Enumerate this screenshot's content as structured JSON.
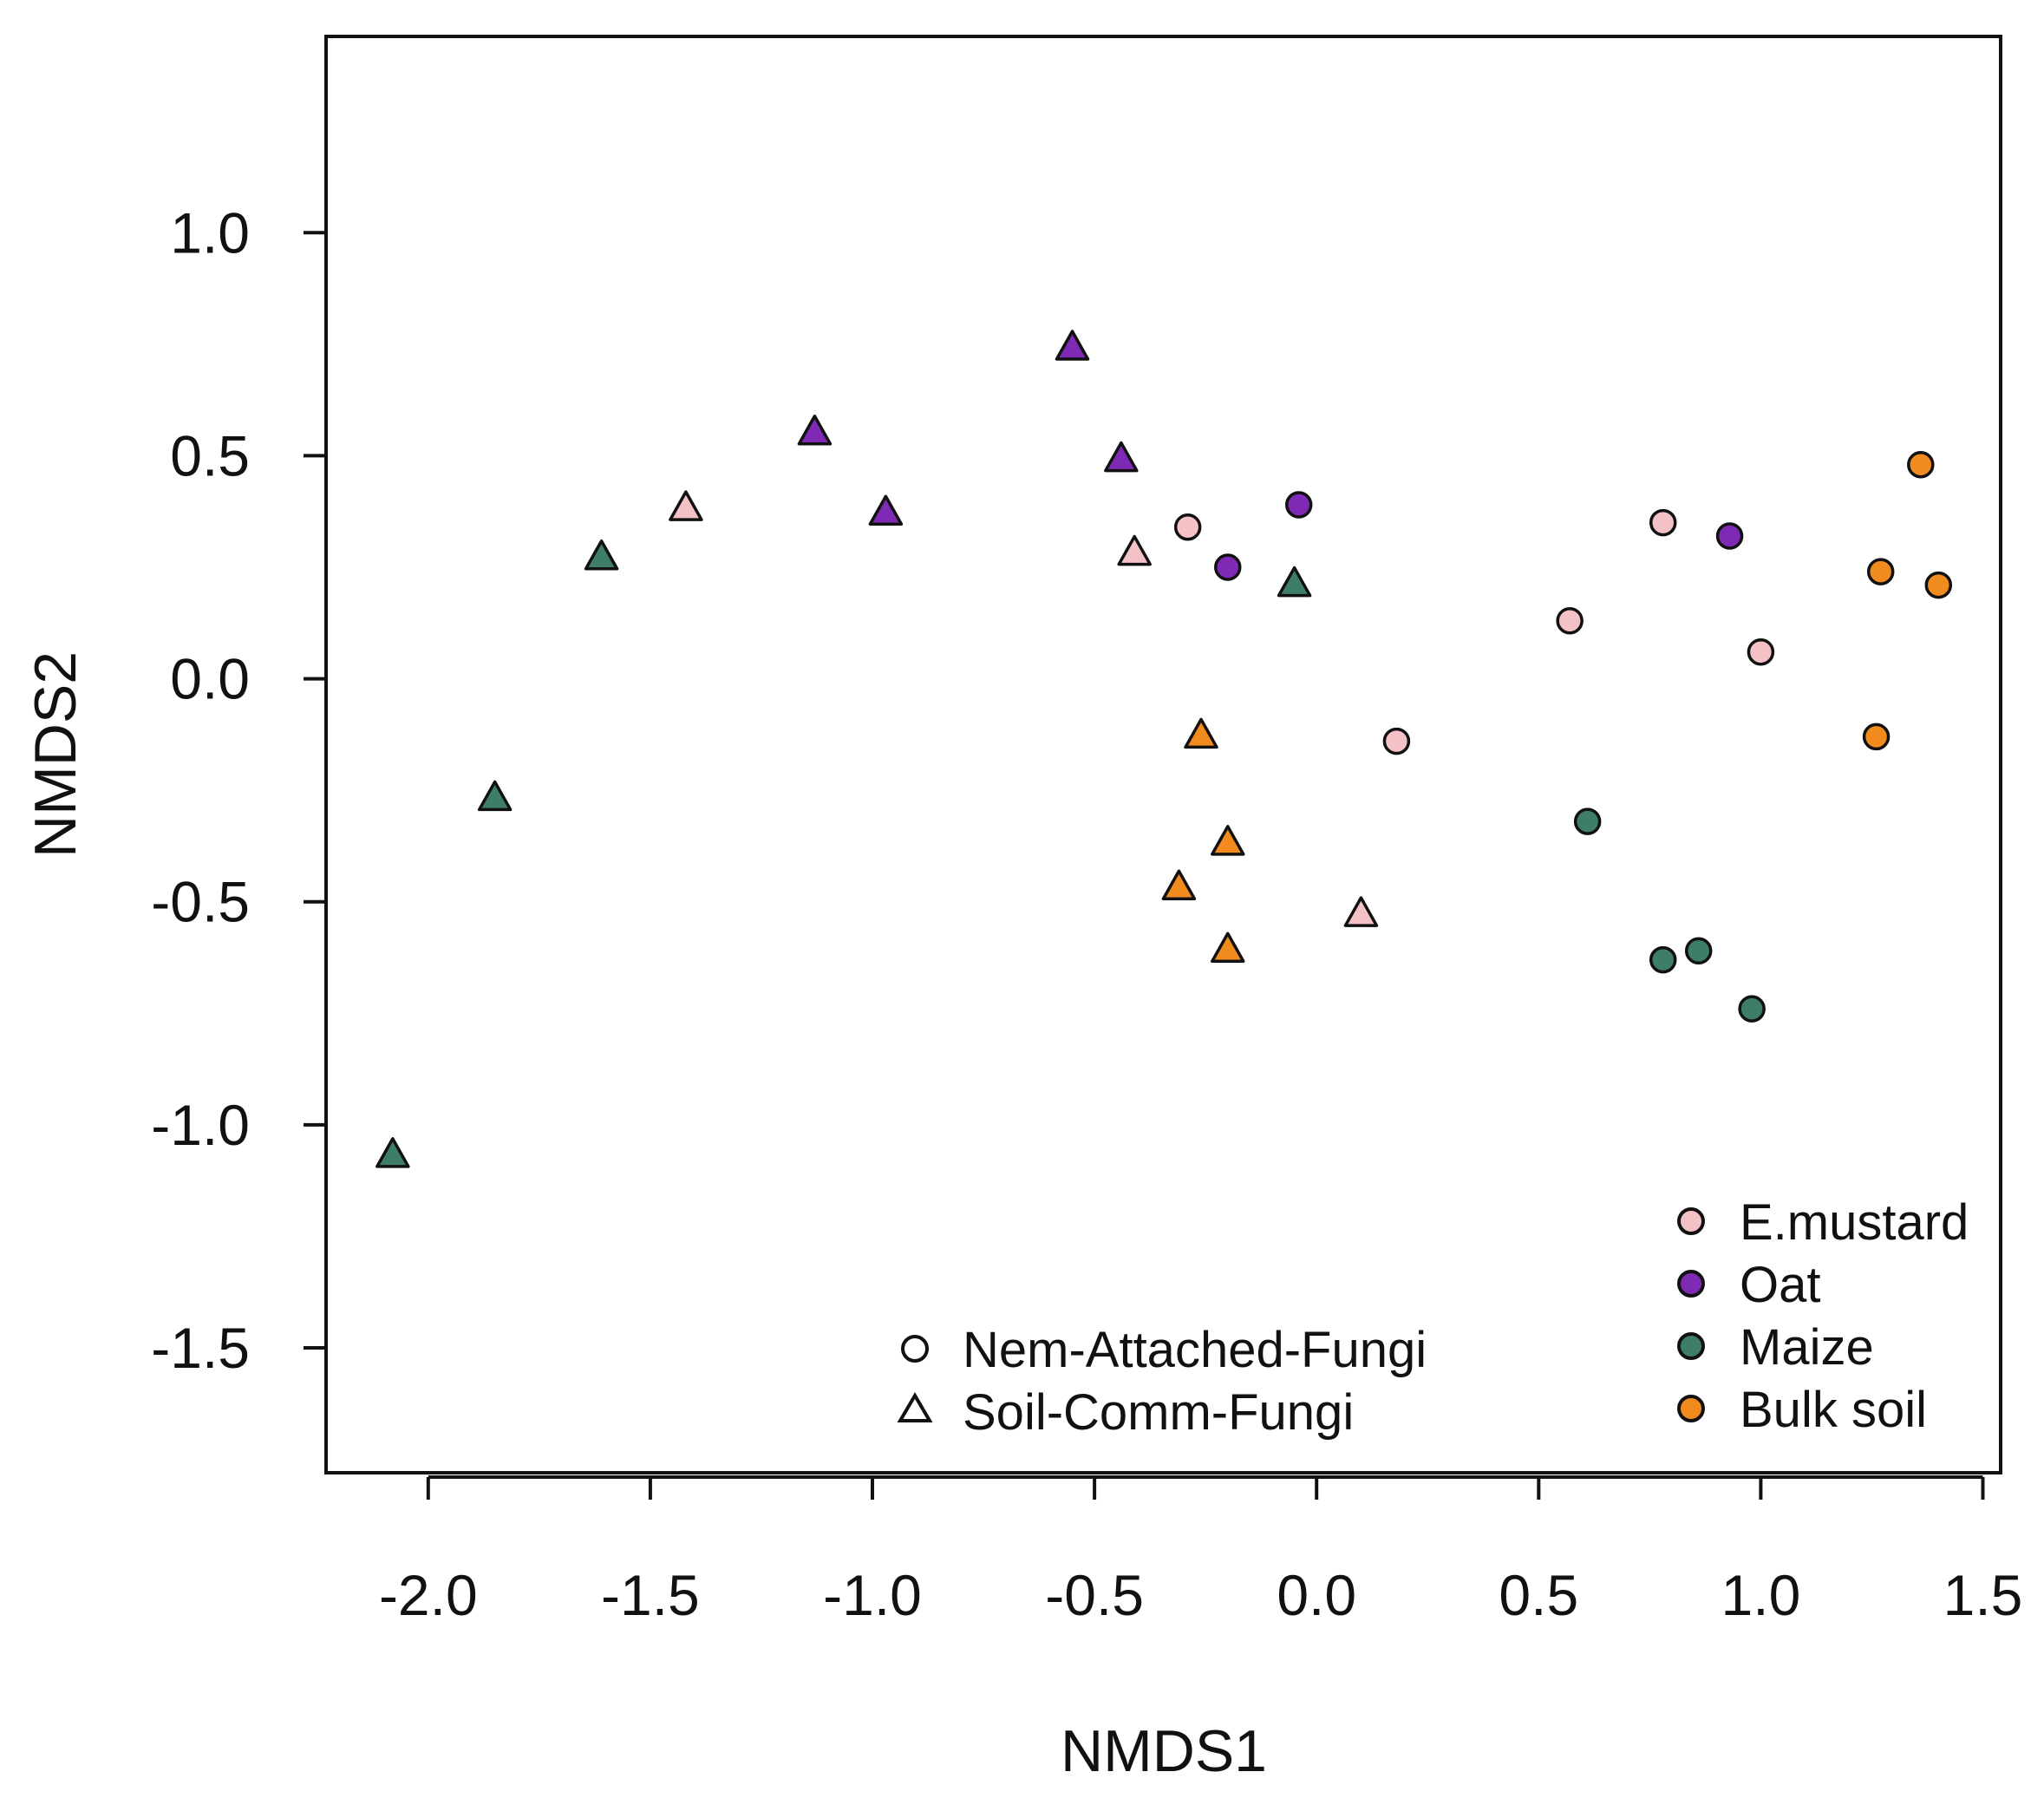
{
  "chart_data": {
    "type": "scatter",
    "title": "",
    "xlabel": "NMDS1",
    "ylabel": "NMDS2",
    "xlim": [
      -2.23,
      1.54
    ],
    "ylim": [
      -1.78,
      1.44
    ],
    "xticks": [
      -2.0,
      -1.5,
      -1.0,
      -0.5,
      0.0,
      0.5,
      1.0,
      1.5
    ],
    "yticks": [
      -1.5,
      -1.0,
      -0.5,
      0.0,
      0.5,
      1.0
    ],
    "xtick_labels": [
      "-2.0",
      "-1.5",
      "-1.0",
      "-0.5",
      "0.0",
      "0.5",
      "1.0",
      "1.5"
    ],
    "ytick_labels": [
      "-1.5",
      "-1.0",
      "-0.5",
      "0.0",
      "0.5",
      "1.0"
    ],
    "grid": false,
    "colors": {
      "E.mustard": "#f4c2c6",
      "Oat": "#7f2ab5",
      "Maize": "#3f7d6b",
      "Bulk soil": "#f28b1e"
    },
    "legend_shape": {
      "position": "bottom-center",
      "entries": [
        {
          "label": "Nem-Attached-Fungi",
          "marker": "circle"
        },
        {
          "label": "Soil-Comm-Fungi",
          "marker": "triangle"
        }
      ]
    },
    "legend_color": {
      "position": "bottom-right",
      "entries": [
        {
          "label": "E.mustard",
          "color": "#f4c2c6"
        },
        {
          "label": "Oat",
          "color": "#7f2ab5"
        },
        {
          "label": "Maize",
          "color": "#3f7d6b"
        },
        {
          "label": "Bulk soil",
          "color": "#f28b1e"
        }
      ]
    },
    "series": [
      {
        "name": "Nem-Attached-Fungi / E.mustard",
        "marker": "circle",
        "color": "#f4c2c6",
        "points": [
          [
            -0.29,
            0.34
          ],
          [
            0.18,
            -0.14
          ],
          [
            0.57,
            0.13
          ],
          [
            0.78,
            0.35
          ],
          [
            1.0,
            0.06
          ]
        ]
      },
      {
        "name": "Nem-Attached-Fungi / Oat",
        "marker": "circle",
        "color": "#7f2ab5",
        "points": [
          [
            -0.2,
            0.25
          ],
          [
            -0.04,
            0.39
          ],
          [
            0.93,
            0.32
          ]
        ]
      },
      {
        "name": "Nem-Attached-Fungi / Maize",
        "marker": "circle",
        "color": "#3f7d6b",
        "points": [
          [
            0.61,
            -0.32
          ],
          [
            0.78,
            -0.63
          ],
          [
            0.86,
            -0.61
          ],
          [
            0.98,
            -0.74
          ]
        ]
      },
      {
        "name": "Nem-Attached-Fungi / Bulk soil",
        "marker": "circle",
        "color": "#f28b1e",
        "points": [
          [
            1.26,
            -0.13
          ],
          [
            1.27,
            0.24
          ],
          [
            1.36,
            0.48
          ],
          [
            1.4,
            0.21
          ]
        ]
      },
      {
        "name": "Soil-Comm-Fungi / E.mustard",
        "marker": "triangle",
        "color": "#f4c2c6",
        "points": [
          [
            -1.42,
            0.38
          ],
          [
            -0.41,
            0.28
          ],
          [
            0.1,
            -0.53
          ]
        ]
      },
      {
        "name": "Soil-Comm-Fungi / Oat",
        "marker": "triangle",
        "color": "#7f2ab5",
        "points": [
          [
            -1.13,
            0.55
          ],
          [
            -0.97,
            0.37
          ],
          [
            -0.55,
            0.74
          ],
          [
            -0.44,
            0.49
          ]
        ]
      },
      {
        "name": "Soil-Comm-Fungi / Maize",
        "marker": "triangle",
        "color": "#3f7d6b",
        "points": [
          [
            -2.08,
            -1.07
          ],
          [
            -1.85,
            -0.27
          ],
          [
            -1.61,
            0.27
          ],
          [
            -0.05,
            0.21
          ]
        ]
      },
      {
        "name": "Soil-Comm-Fungi / Bulk soil",
        "marker": "triangle",
        "color": "#f28b1e",
        "points": [
          [
            -0.26,
            -0.13
          ],
          [
            -0.31,
            -0.47
          ],
          [
            -0.2,
            -0.37
          ],
          [
            -0.2,
            -0.61
          ]
        ]
      }
    ]
  }
}
